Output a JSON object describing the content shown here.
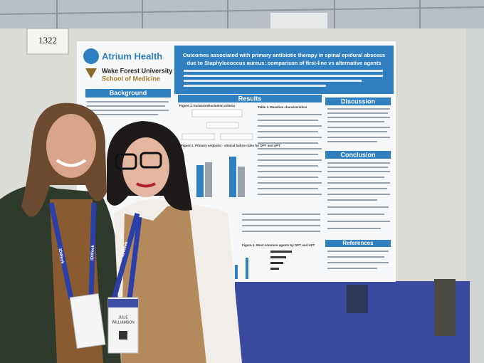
{
  "booth_number": "1322",
  "poster": {
    "logo_1": "Atrium Health",
    "logo_2": [
      "Wake Forest University",
      "School of Medicine"
    ],
    "title_lines": [
      "Outcomes associated with primary antibiotic therapy in spinal epidural abscess",
      "due to Staphylococcus aureus: comparison of first-line vs alternative agents"
    ],
    "sections": [
      "Background",
      "Results",
      "Discussion",
      "Conclusion",
      "References"
    ],
    "figures": [
      "Figure 1. Inclusion/exclusion criteria",
      "Table 1. Baseline characteristics",
      "Figure 2. Primary endpoint - clinical failure rates for DPT and APT",
      "Figure 4. Most common agents by DPT and APT"
    ]
  },
  "lanyard": "IDWeek",
  "badge": [
    "JULIE",
    "WILLIAMSON"
  ]
}
